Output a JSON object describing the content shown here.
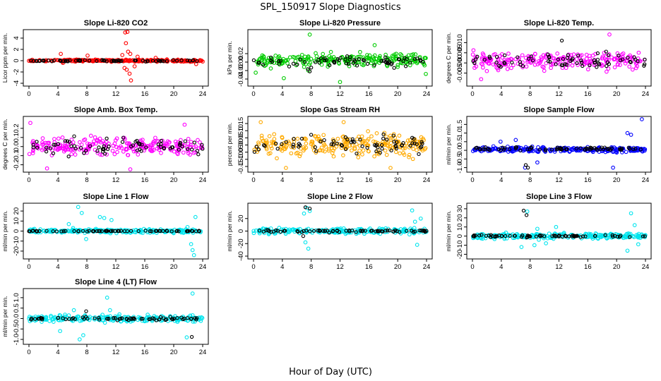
{
  "figure": {
    "title": "SPL_150917  Slope Diagnostics",
    "xlabel": "Hour of Day (UTC)"
  },
  "chart_data": [
    {
      "type": "scatter",
      "title": "Slope Li-820 CO2",
      "ylabel": "Licor ppm per min.",
      "xlim": [
        0,
        24
      ],
      "ylim": [
        -4,
        5
      ],
      "x_ticks": [
        0,
        4,
        8,
        12,
        16,
        20,
        24
      ],
      "y_ticks": [
        -4,
        -2,
        0,
        2,
        4
      ],
      "y_tick_labels": [
        "-4",
        "-2",
        "0",
        "2",
        "4"
      ],
      "series": [
        {
          "role": "main",
          "color": "#ff0000",
          "center": 0,
          "spread": 0.15,
          "outliers": [
            [
              4.4,
              1.2
            ],
            [
              4.7,
              -0.4
            ],
            [
              8.1,
              0.9
            ],
            [
              12.9,
              1.0
            ],
            [
              13.3,
              5.0
            ],
            [
              13.6,
              5.1
            ],
            [
              13.4,
              3.1
            ],
            [
              13.7,
              1.6
            ],
            [
              13.2,
              -1.3
            ],
            [
              13.5,
              -1.6
            ],
            [
              13.9,
              -2.3
            ],
            [
              14.1,
              -3.5
            ],
            [
              14.0,
              1.2
            ],
            [
              14.6,
              -1.0
            ],
            [
              15.0,
              0.7
            ],
            [
              17.5,
              0.5
            ],
            [
              23.1,
              -0.6
            ]
          ]
        },
        {
          "role": "overlay",
          "color": "#000000",
          "center": 0,
          "spread": 0.12,
          "outliers": []
        }
      ]
    },
    {
      "type": "scatter",
      "title": "Slope Li-820 Pressure",
      "ylabel": "kPa per min.",
      "xlim": [
        0,
        24
      ],
      "ylim": [
        -0.05,
        0.07
      ],
      "x_ticks": [
        0,
        4,
        8,
        12,
        16,
        20,
        24
      ],
      "y_ticks": [
        -0.04,
        -0.02,
        0,
        0.02
      ],
      "y_tick_labels": [
        "-0.04",
        "-0.02",
        "0.00",
        "0.02"
      ],
      "series": [
        {
          "role": "main",
          "color": "#00cc00",
          "center": 0.005,
          "spread": 0.012,
          "outliers": [
            [
              0.3,
              -0.025
            ],
            [
              4.2,
              -0.038
            ],
            [
              7.6,
              -0.02
            ],
            [
              7.8,
              0.065
            ],
            [
              12.0,
              -0.047
            ],
            [
              16.8,
              0.04
            ],
            [
              23.9,
              -0.028
            ]
          ]
        },
        {
          "role": "overlay",
          "color": "#000000",
          "center": 0.0,
          "spread": 0.01,
          "outliers": [
            [
              7.8,
              -0.022
            ],
            [
              8.0,
              -0.013
            ]
          ]
        }
      ]
    },
    {
      "type": "scatter",
      "title": "Slope Li-820 Temp.",
      "ylabel": "degrees C per min.",
      "xlim": [
        0,
        24
      ],
      "ylim": [
        -0.01,
        0.015
      ],
      "x_ticks": [
        0,
        4,
        8,
        12,
        16,
        20,
        24
      ],
      "y_ticks": [
        -0.005,
        0,
        0.005,
        0.01
      ],
      "y_tick_labels": [
        "-0.005",
        "0.000",
        "0.005",
        "0.010"
      ],
      "series": [
        {
          "role": "main",
          "color": "#ff00ff",
          "center": 0.001,
          "spread": 0.0035,
          "outliers": [
            [
              1.2,
              -0.008
            ],
            [
              2.0,
              -0.004
            ],
            [
              19.0,
              0.014
            ]
          ]
        },
        {
          "role": "overlay",
          "color": "#000000",
          "center": 0.001,
          "spread": 0.003,
          "outliers": [
            [
              12.4,
              0.011
            ]
          ]
        }
      ]
    },
    {
      "type": "scatter",
      "title": "Slope Amb. Box Temp.",
      "ylabel": "degrees C per min.",
      "xlim": [
        0,
        24
      ],
      "ylim": [
        -0.25,
        0.3
      ],
      "x_ticks": [
        0,
        4,
        8,
        12,
        16,
        20,
        24
      ],
      "y_ticks": [
        -0.2,
        -0.1,
        0,
        0.1,
        0.2
      ],
      "y_tick_labels": [
        "-0.2",
        "-0.1",
        "0.0",
        "0.1",
        "0.2"
      ],
      "series": [
        {
          "role": "main",
          "color": "#ff00ff",
          "center": 0.0,
          "spread": 0.08,
          "outliers": [
            [
              0.2,
              0.26
            ],
            [
              2.5,
              -0.24
            ],
            [
              14.0,
              -0.25
            ],
            [
              21.5,
              0.24
            ]
          ]
        },
        {
          "role": "overlay",
          "color": "#000000",
          "center": 0.0,
          "spread": 0.07,
          "outliers": []
        }
      ]
    },
    {
      "type": "scatter",
      "title": "Slope Gas Stream RH",
      "ylabel": "percent per min.",
      "xlim": [
        0,
        24
      ],
      "ylim": [
        -0.17,
        0.18
      ],
      "x_ticks": [
        0,
        4,
        8,
        12,
        16,
        20,
        24
      ],
      "y_ticks": [
        -0.15,
        -0.1,
        -0.05,
        0,
        0.05,
        0.1,
        0.15
      ],
      "y_tick_labels": [
        "-0.15",
        "-0.10",
        "-0.05",
        "0.00",
        "0.05",
        "0.10",
        "0.15"
      ],
      "series": [
        {
          "role": "main",
          "color": "#ffaa00",
          "center": 0.0,
          "spread": 0.06,
          "outliers": [
            [
              1.0,
              0.16
            ],
            [
              4.5,
              -0.16
            ],
            [
              12.5,
              0.16
            ],
            [
              19.0,
              -0.16
            ]
          ]
        },
        {
          "role": "overlay",
          "color": "#000000",
          "center": 0.0,
          "spread": 0.05,
          "outliers": []
        }
      ]
    },
    {
      "type": "scatter",
      "title": "Slope Sample Flow",
      "ylabel": "ml/min per min.",
      "xlim": [
        0,
        24
      ],
      "ylim": [
        -1.1,
        1.8
      ],
      "x_ticks": [
        0,
        4,
        8,
        12,
        16,
        20,
        24
      ],
      "y_ticks": [
        -1.0,
        -0.5,
        0,
        0.5,
        1.0,
        1.5
      ],
      "y_tick_labels": [
        "-1.0",
        "-0.5",
        "0.0",
        "0.5",
        "1.0",
        "1.5"
      ],
      "series": [
        {
          "role": "main",
          "color": "#0000ff",
          "center": 0.05,
          "spread": 0.12,
          "outliers": [
            [
              3.9,
              0.5
            ],
            [
              6.0,
              0.6
            ],
            [
              7.3,
              -1.0
            ],
            [
              9.0,
              -0.7
            ],
            [
              19.5,
              -1.0
            ],
            [
              21.5,
              1.0
            ],
            [
              22.0,
              0.9
            ],
            [
              23.5,
              1.8
            ]
          ]
        },
        {
          "role": "overlay",
          "color": "#000000",
          "center": 0.1,
          "spread": 0.08,
          "outliers": [
            [
              7.4,
              -0.85
            ],
            [
              7.7,
              -1.0
            ]
          ]
        }
      ]
    },
    {
      "type": "scatter",
      "title": "Slope Line 1 Flow",
      "ylabel": "ml/min per min.",
      "xlim": [
        0,
        24
      ],
      "ylim": [
        -25,
        25
      ],
      "x_ticks": [
        0,
        4,
        8,
        12,
        16,
        20,
        24
      ],
      "y_ticks": [
        -20,
        -10,
        0,
        10,
        20
      ],
      "y_tick_labels": [
        "-20",
        "-10",
        "0",
        "10",
        "20"
      ],
      "series": [
        {
          "role": "main",
          "color": "#00e5ee",
          "center": 0.0,
          "spread": 1.5,
          "outliers": [
            [
              5.5,
              7
            ],
            [
              6.1,
              3
            ],
            [
              6.8,
              24
            ],
            [
              7.3,
              18
            ],
            [
              7.9,
              -8
            ],
            [
              9.8,
              14
            ],
            [
              10.4,
              13
            ],
            [
              11.4,
              11
            ],
            [
              21.9,
              4
            ],
            [
              22.4,
              -13
            ],
            [
              22.6,
              -19
            ],
            [
              23.0,
              14
            ],
            [
              22.8,
              -24
            ]
          ]
        },
        {
          "role": "overlay",
          "color": "#000000",
          "center": 0.0,
          "spread": 0.3,
          "outliers": []
        }
      ]
    },
    {
      "type": "scatter",
      "title": "Slope Line 2 Flow",
      "ylabel": "ml/min per min.",
      "xlim": [
        0,
        24
      ],
      "ylim": [
        -40,
        40
      ],
      "x_ticks": [
        0,
        4,
        8,
        12,
        16,
        20,
        24
      ],
      "y_ticks": [
        -40,
        -20,
        0,
        20
      ],
      "y_tick_labels": [
        "-40",
        "-20",
        "0",
        "20"
      ],
      "series": [
        {
          "role": "main",
          "color": "#00e5ee",
          "center": 0.0,
          "spread": 3.5,
          "outliers": [
            [
              7.0,
              28
            ],
            [
              7.4,
              37
            ],
            [
              7.8,
              32
            ],
            [
              7.2,
              -18
            ],
            [
              7.6,
              -28
            ],
            [
              22.0,
              33
            ],
            [
              22.4,
              15
            ],
            [
              22.7,
              -22
            ],
            [
              23.2,
              20
            ]
          ]
        },
        {
          "role": "overlay",
          "color": "#000000",
          "center": 0.0,
          "spread": 1.5,
          "outliers": [
            [
              7.2,
              38
            ],
            [
              7.8,
              36
            ],
            [
              6.9,
              -8
            ]
          ]
        }
      ]
    },
    {
      "type": "scatter",
      "title": "Slope Line 3 Flow",
      "ylabel": "ml/min per min.",
      "xlim": [
        0,
        24
      ],
      "ylim": [
        -22,
        33
      ],
      "x_ticks": [
        0,
        4,
        8,
        12,
        16,
        20,
        24
      ],
      "y_ticks": [
        -20,
        -10,
        0,
        10,
        20,
        30
      ],
      "y_tick_labels": [
        "-20",
        "-10",
        "0",
        "10",
        "20",
        "30"
      ],
      "series": [
        {
          "role": "main",
          "color": "#00e5ee",
          "center": 0.0,
          "spread": 2.5,
          "outliers": [
            [
              6.8,
              -12
            ],
            [
              7.6,
              27
            ],
            [
              8.6,
              -10
            ],
            [
              9.0,
              8
            ],
            [
              10.2,
              -8
            ],
            [
              11.6,
              10
            ],
            [
              21.5,
              -16
            ],
            [
              22.0,
              25
            ],
            [
              22.5,
              12
            ],
            [
              23.0,
              -9
            ]
          ]
        },
        {
          "role": "overlay",
          "color": "#000000",
          "center": 0.0,
          "spread": 1.0,
          "outliers": [
            [
              7.1,
              28
            ],
            [
              7.5,
              23
            ]
          ]
        }
      ]
    },
    {
      "type": "scatter",
      "title": "Slope Line 4 (LT) Flow",
      "ylabel": "ml/min per min.",
      "xlim": [
        0,
        24
      ],
      "ylim": [
        -1.1,
        1.3
      ],
      "x_ticks": [
        0,
        4,
        8,
        12,
        16,
        20,
        24
      ],
      "y_ticks": [
        -1.0,
        -0.5,
        0,
        0.5,
        1.0
      ],
      "y_tick_labels": [
        "-1.0",
        "-0.5",
        "0.0",
        "0.5",
        "1.0"
      ],
      "series": [
        {
          "role": "main",
          "color": "#00e5ee",
          "center": 0.0,
          "spread": 0.12,
          "outliers": [
            [
              4.3,
              -0.6
            ],
            [
              5.5,
              0.15
            ],
            [
              6.2,
              0.4
            ],
            [
              7.0,
              -1.0
            ],
            [
              7.5,
              -0.8
            ],
            [
              10.8,
              1.0
            ],
            [
              10.5,
              -0.2
            ],
            [
              11.2,
              0.4
            ],
            [
              12.5,
              0.2
            ],
            [
              21.8,
              -0.9
            ],
            [
              22.6,
              1.2
            ]
          ]
        },
        {
          "role": "overlay",
          "color": "#000000",
          "center": 0.0,
          "spread": 0.06,
          "outliers": [
            [
              7.9,
              0.35
            ],
            [
              22.5,
              -0.88
            ]
          ]
        }
      ]
    }
  ]
}
